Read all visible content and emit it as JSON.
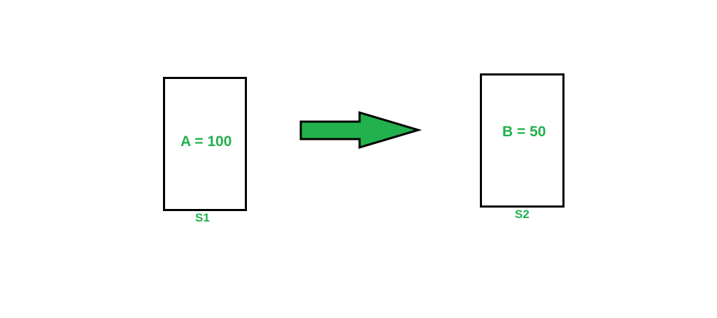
{
  "diagram": {
    "left_box": {
      "value_text": "A = 100",
      "label": "S1"
    },
    "right_box": {
      "value_text": "B = 50",
      "label": "S2"
    },
    "arrow": {
      "direction": "right",
      "fill_color": "#22b14c",
      "stroke_color": "#000000"
    },
    "text_color": "#22b14c",
    "border_color": "#000000"
  }
}
